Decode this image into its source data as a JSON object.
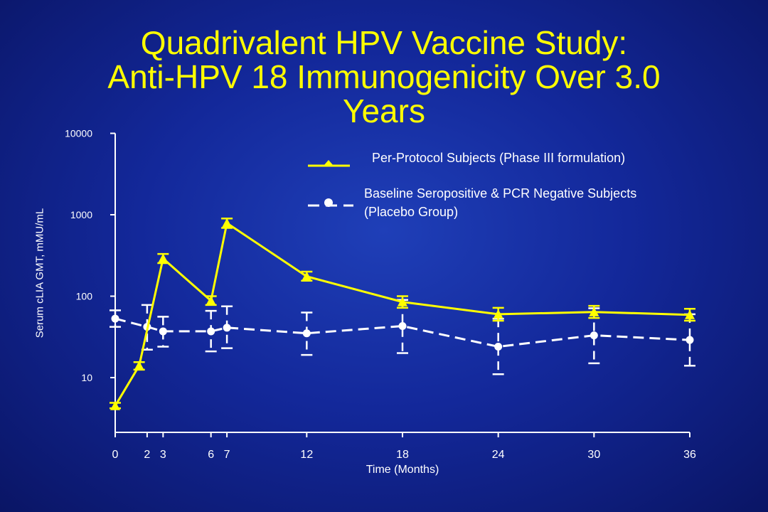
{
  "slide": {
    "title_line1": "Quadrivalent HPV Vaccine Study:",
    "title_line2": "Anti-HPV 18 Immunogenicity Over 3.0",
    "title_line3": "Years"
  },
  "colors": {
    "background": "#13289a",
    "title": "#ffff00",
    "vaccine_series": "#ffff00",
    "placebo_series": "#ffffff",
    "axis": "#ffffff"
  },
  "chart_data": {
    "type": "line",
    "title": "Quadrivalent HPV Vaccine Study: Anti-HPV 18 Immunogenicity Over 3.0 Years",
    "xlabel": "Time (Months)",
    "ylabel": "Serum cLIA GMT, mMU/mL",
    "yscale": "log",
    "ylim": [
      2,
      10000
    ],
    "xlim": [
      0,
      36
    ],
    "x_ticks": [
      0,
      2,
      3,
      6,
      7,
      12,
      18,
      24,
      30,
      36
    ],
    "y_ticks": [
      {
        "value": 10,
        "label": "10"
      },
      {
        "value": 100,
        "label": "100"
      },
      {
        "value": 1000,
        "label": "1000"
      },
      {
        "value": 10000,
        "label": "10000"
      }
    ],
    "grid": false,
    "legend_position": "top-right",
    "series": [
      {
        "name": "Per-Protocol Subjects (Phase III formulation)",
        "color": "#ffff00",
        "marker": "triangle",
        "line_style": "solid",
        "points": [
          {
            "x": 0,
            "y": 4.5,
            "lo": 4.2,
            "hi": 4.9
          },
          {
            "x": 1.5,
            "y": 14,
            "lo": 12.5,
            "hi": 15.5
          },
          {
            "x": 3,
            "y": 290,
            "lo": 255,
            "hi": 330
          },
          {
            "x": 6,
            "y": 88,
            "lo": 78,
            "hi": 100
          },
          {
            "x": 7,
            "y": 790,
            "lo": 690,
            "hi": 900
          },
          {
            "x": 12,
            "y": 175,
            "lo": 155,
            "hi": 200
          },
          {
            "x": 18,
            "y": 85,
            "lo": 72,
            "hi": 100
          },
          {
            "x": 24,
            "y": 60,
            "lo": 50,
            "hi": 72
          },
          {
            "x": 30,
            "y": 64,
            "lo": 54,
            "hi": 76
          },
          {
            "x": 36,
            "y": 59,
            "lo": 50,
            "hi": 70
          }
        ]
      },
      {
        "name": "Baseline Seropositive & PCR Negative Subjects (Placebo Group)",
        "color": "#ffffff",
        "marker": "circle",
        "line_style": "dashed",
        "points": [
          {
            "x": 0,
            "y": 53,
            "lo": 42,
            "hi": 67
          },
          {
            "x": 2,
            "y": 42,
            "lo": 22,
            "hi": 78
          },
          {
            "x": 3,
            "y": 37,
            "lo": 24,
            "hi": 56
          },
          {
            "x": 6,
            "y": 37,
            "lo": 21,
            "hi": 66
          },
          {
            "x": 7,
            "y": 41,
            "lo": 23,
            "hi": 75
          },
          {
            "x": 12,
            "y": 35,
            "lo": 19,
            "hi": 63
          },
          {
            "x": 18,
            "y": 43,
            "lo": 20,
            "hi": 90
          },
          {
            "x": 24,
            "y": 24,
            "lo": 11,
            "hi": 53
          },
          {
            "x": 30,
            "y": 33,
            "lo": 15,
            "hi": 71
          },
          {
            "x": 36,
            "y": 29,
            "lo": 14,
            "hi": 60
          }
        ]
      }
    ]
  }
}
